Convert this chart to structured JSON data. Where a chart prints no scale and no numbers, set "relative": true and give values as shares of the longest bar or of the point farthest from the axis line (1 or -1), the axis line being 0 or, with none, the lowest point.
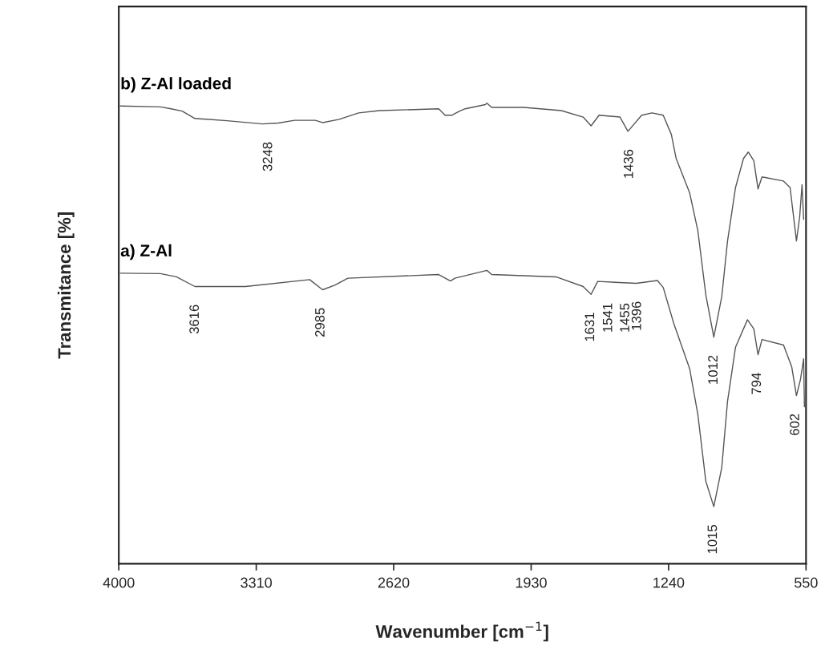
{
  "chart_data": {
    "type": "line",
    "relative": true,
    "xlabel": "Wavenumber [cm$^{−1}$]",
    "ylabel": "Transmitance [%]",
    "xlim": [
      4000,
      550
    ],
    "xticks": [
      4000,
      3310,
      2620,
      1930,
      1240,
      550
    ],
    "grid": false,
    "legend": false,
    "marker": "none",
    "line_style": "solid",
    "series": [
      {
        "name": "b) Z-Al loaded",
        "color": "#555555",
        "x": [
          3992,
          3791,
          3738,
          3682,
          3618,
          3457,
          3279,
          3199,
          3118,
          3014,
          2977,
          2893,
          2796,
          2692,
          2394,
          2362,
          2329,
          2289,
          2261,
          2160,
          2152,
          2128,
          1967,
          1778,
          1669,
          1629,
          1589,
          1484,
          1444,
          1375,
          1323,
          1267,
          1226,
          1202,
          1134,
          1093,
          1053,
          1013,
          973,
          944,
          904,
          864,
          840,
          812,
          791,
          771,
          663,
          630,
          598,
          582,
          570,
          562
        ],
        "values": [
          0.994,
          0.992,
          0.988,
          0.983,
          0.967,
          0.962,
          0.955,
          0.957,
          0.963,
          0.963,
          0.958,
          0.965,
          0.979,
          0.984,
          0.988,
          0.974,
          0.974,
          0.983,
          0.988,
          0.997,
          1.0,
          0.991,
          0.991,
          0.984,
          0.97,
          0.951,
          0.974,
          0.97,
          0.939,
          0.974,
          0.979,
          0.974,
          0.932,
          0.88,
          0.805,
          0.723,
          0.584,
          0.492,
          0.58,
          0.701,
          0.817,
          0.88,
          0.894,
          0.875,
          0.814,
          0.84,
          0.831,
          0.817,
          0.701,
          0.753,
          0.823,
          0.748
        ]
      },
      {
        "name": "a) Z-Al",
        "color": "#555555",
        "x": [
          3992,
          3791,
          3711,
          3618,
          3364,
          3042,
          2977,
          2916,
          2850,
          2394,
          2335,
          2313,
          2152,
          2128,
          1805,
          1669,
          1629,
          1596,
          1402,
          1296,
          1267,
          1214,
          1134,
          1093,
          1053,
          1013,
          973,
          944,
          904,
          844,
          812,
          791,
          771,
          663,
          622,
          598,
          578,
          562,
          558
        ],
        "values": [
          0.631,
          0.63,
          0.623,
          0.602,
          0.602,
          0.617,
          0.595,
          0.605,
          0.62,
          0.628,
          0.614,
          0.62,
          0.637,
          0.628,
          0.623,
          0.602,
          0.585,
          0.613,
          0.609,
          0.615,
          0.6,
          0.522,
          0.423,
          0.324,
          0.179,
          0.124,
          0.209,
          0.353,
          0.47,
          0.53,
          0.51,
          0.454,
          0.487,
          0.475,
          0.428,
          0.365,
          0.4,
          0.445,
          0.341
        ]
      }
    ],
    "annotations": [
      {
        "text": "3248",
        "x": 3248,
        "y": 0.955
      },
      {
        "text": "1436",
        "x": 1436,
        "y": 0.939
      },
      {
        "text": "1012",
        "x": 1012,
        "y": 0.492
      },
      {
        "text": "3616",
        "x": 3616,
        "y": 0.602
      },
      {
        "text": "2985",
        "x": 2985,
        "y": 0.595
      },
      {
        "text": "1631",
        "x": 1631,
        "y": 0.585
      },
      {
        "text": "1541",
        "x": 1541,
        "y": 0.605
      },
      {
        "text": "1455",
        "x": 1455,
        "y": 0.605
      },
      {
        "text": "1396",
        "x": 1396,
        "y": 0.609
      },
      {
        "text": "1015",
        "x": 1015,
        "y": 0.124
      },
      {
        "text": "794",
        "x": 794,
        "y": 0.454
      },
      {
        "text": "602",
        "x": 602,
        "y": 0.365
      }
    ]
  }
}
